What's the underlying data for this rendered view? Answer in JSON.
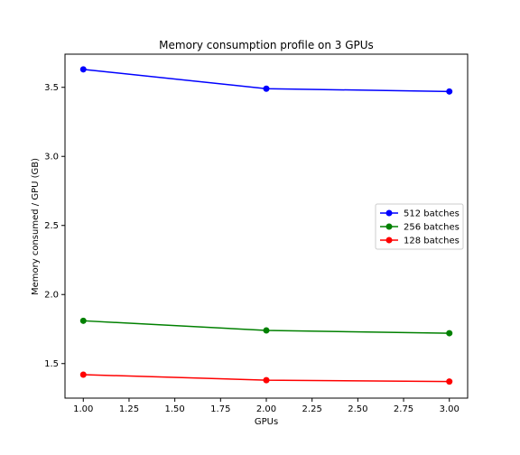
{
  "chart_data": {
    "type": "line",
    "title": "Memory consumption profile on 3 GPUs",
    "xlabel": "GPUs",
    "ylabel": "Memory consumed / GPU (GB)",
    "xlim": [
      0.9,
      3.1
    ],
    "ylim": [
      1.25,
      3.74
    ],
    "x_ticks": [
      "1.00",
      "1.25",
      "1.50",
      "1.75",
      "2.00",
      "2.25",
      "2.50",
      "2.75",
      "3.00"
    ],
    "y_ticks": [
      "1.5",
      "2.0",
      "2.5",
      "3.0",
      "3.5"
    ],
    "x": [
      1,
      2,
      3
    ],
    "series": [
      {
        "name": "512 batches",
        "color": "#0000ff",
        "values": [
          3.63,
          3.49,
          3.47
        ]
      },
      {
        "name": "256 batches",
        "color": "#008000",
        "values": [
          1.81,
          1.74,
          1.72
        ]
      },
      {
        "name": "128 batches",
        "color": "#ff0000",
        "values": [
          1.42,
          1.38,
          1.37
        ]
      }
    ],
    "legend": {
      "placement": "right"
    },
    "grid": false
  }
}
